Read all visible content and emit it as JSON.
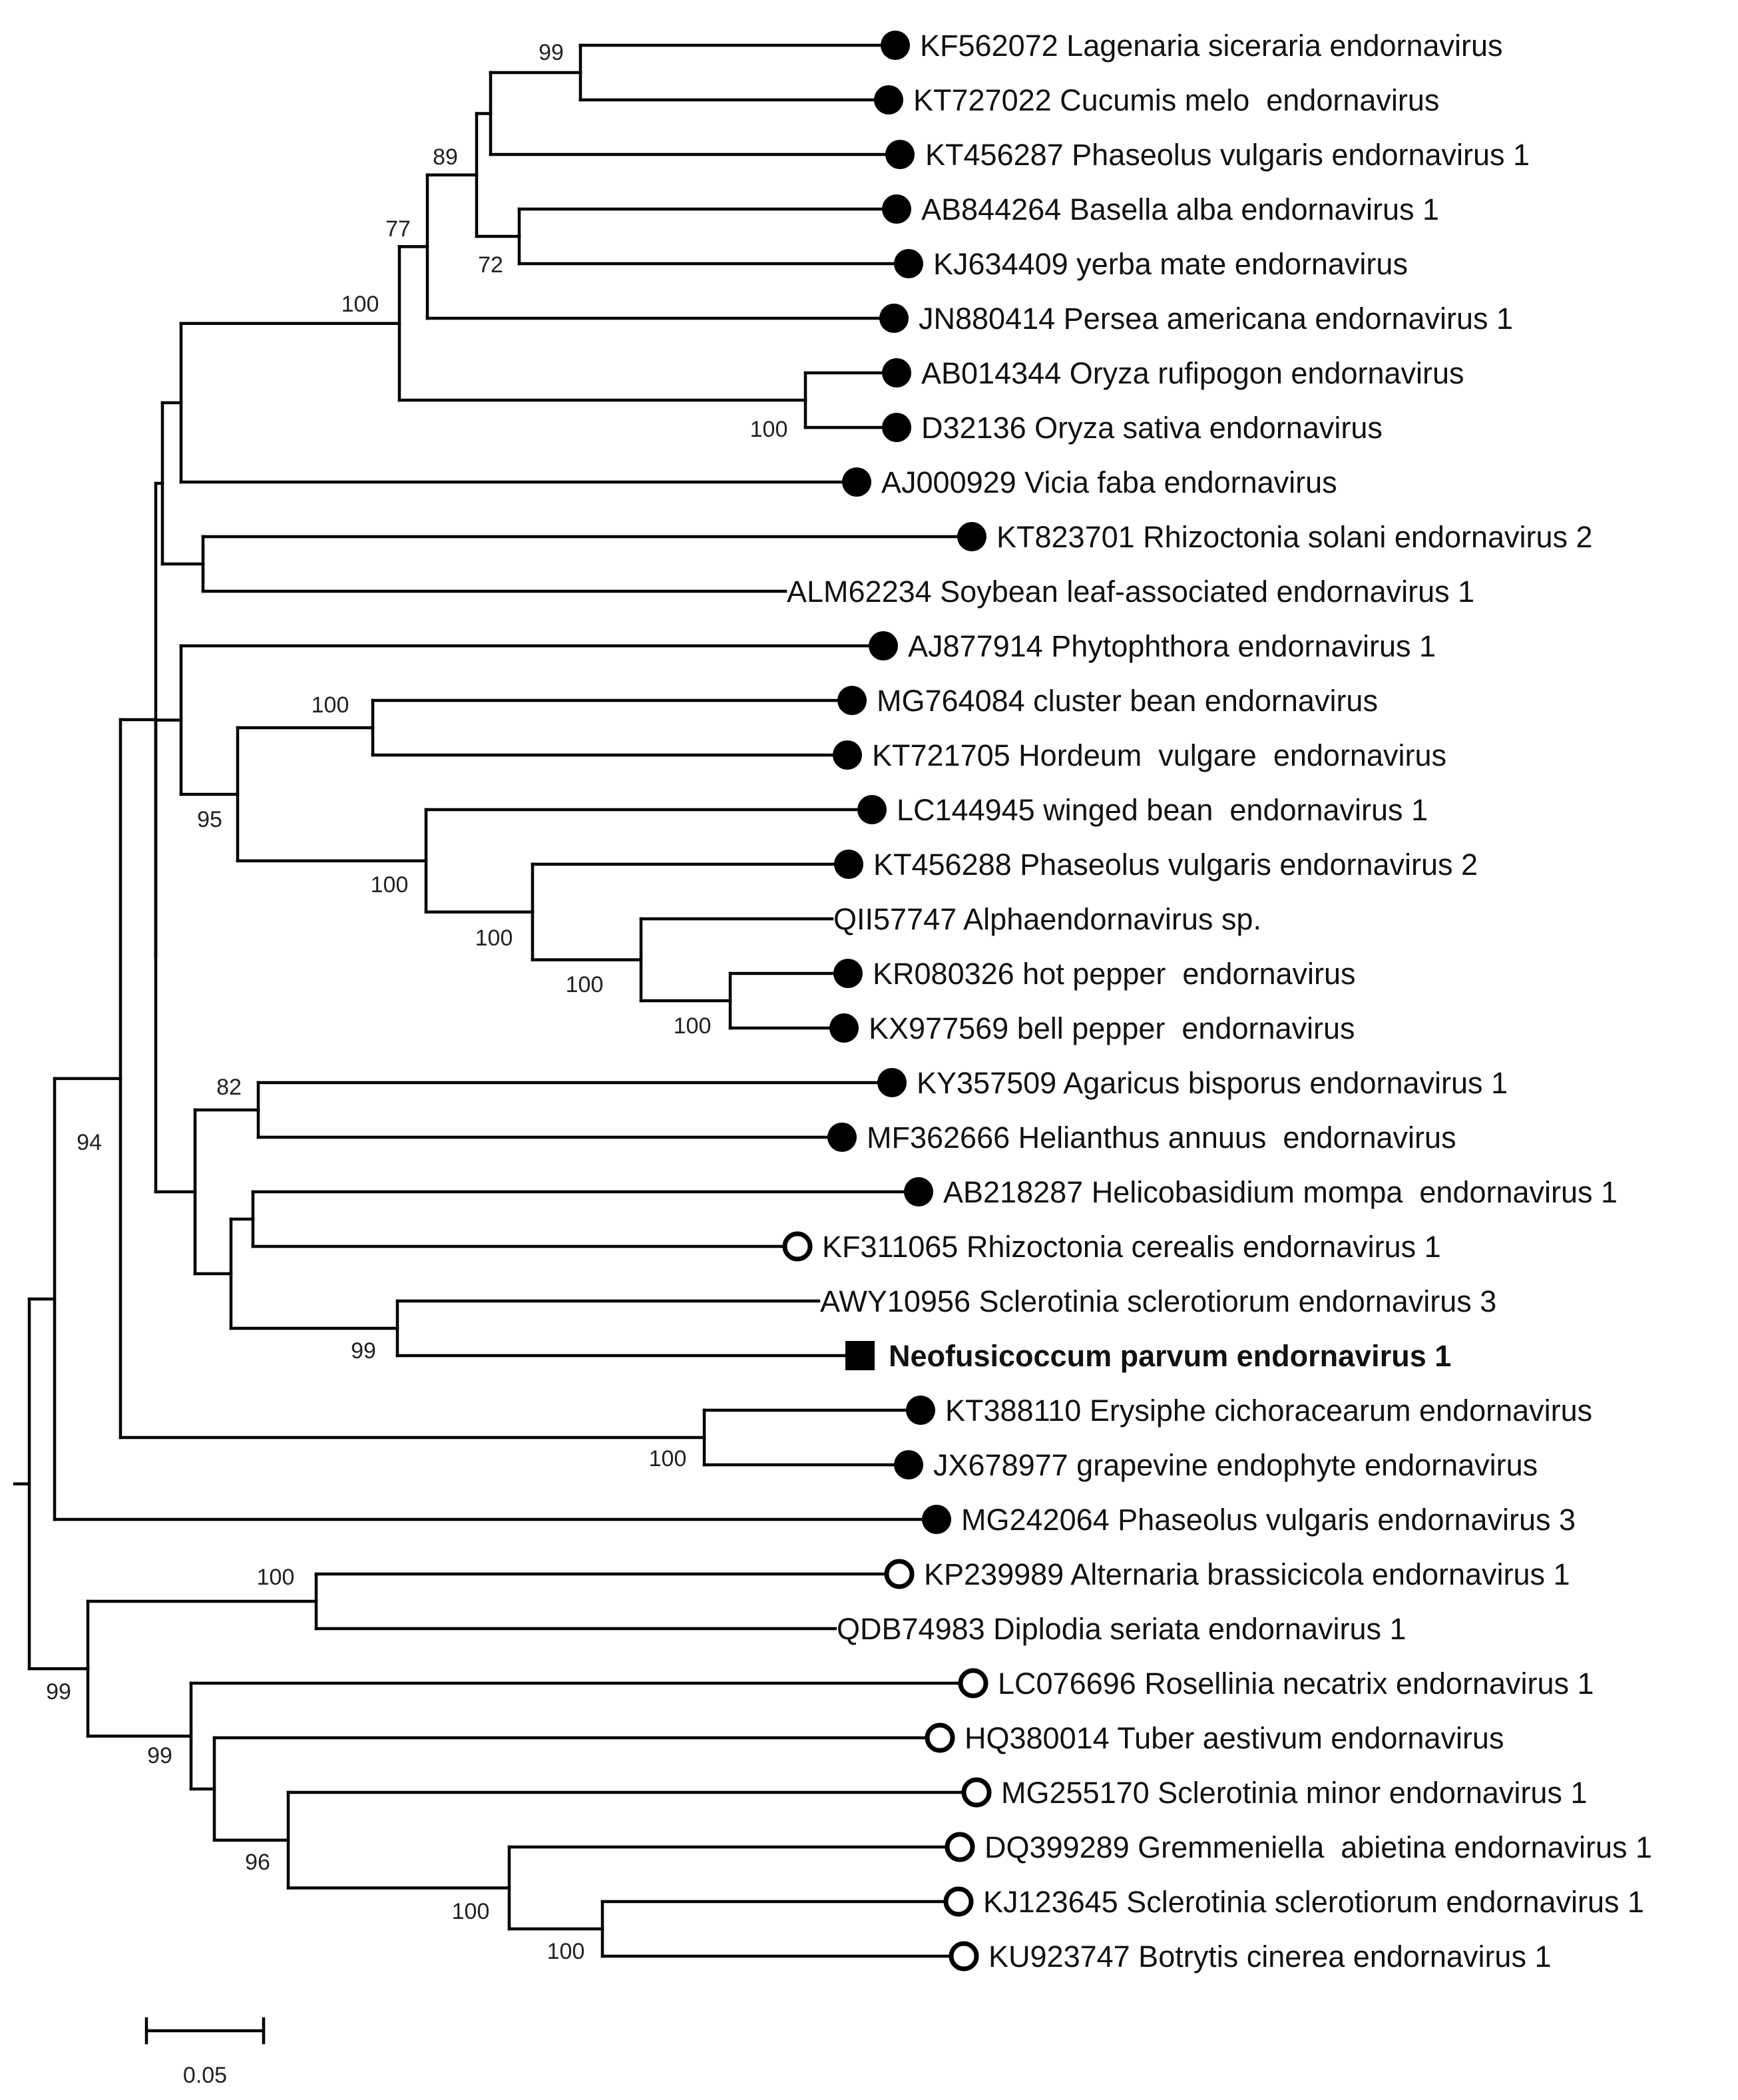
{
  "figure": {
    "type": "phylogenetic-tree",
    "scale_bar_label": "0.05"
  },
  "taxa": [
    {
      "label": "KF562072 Lagenaria siceraria endornavirus",
      "marker": "filled-circle",
      "bold": false
    },
    {
      "label": "KT727022 Cucumis melo  endornavirus",
      "marker": "filled-circle",
      "bold": false
    },
    {
      "label": "KT456287 Phaseolus vulgaris endornavirus 1",
      "marker": "filled-circle",
      "bold": false
    },
    {
      "label": "AB844264 Basella alba endornavirus 1",
      "marker": "filled-circle",
      "bold": false
    },
    {
      "label": "KJ634409 yerba mate endornavirus",
      "marker": "filled-circle",
      "bold": false
    },
    {
      "label": "JN880414 Persea americana endornavirus 1",
      "marker": "filled-circle",
      "bold": false
    },
    {
      "label": "AB014344 Oryza rufipogon endornavirus",
      "marker": "filled-circle",
      "bold": false
    },
    {
      "label": "D32136 Oryza sativa endornavirus",
      "marker": "filled-circle",
      "bold": false
    },
    {
      "label": "AJ000929 Vicia faba endornavirus",
      "marker": "filled-circle",
      "bold": false
    },
    {
      "label": "KT823701 Rhizoctonia solani endornavirus 2",
      "marker": "filled-circle",
      "bold": false
    },
    {
      "label": "ALM62234 Soybean leaf-associated endornavirus 1",
      "marker": "none",
      "bold": false
    },
    {
      "label": "AJ877914 Phytophthora endornavirus 1",
      "marker": "filled-circle",
      "bold": false
    },
    {
      "label": "MG764084 cluster bean endornavirus",
      "marker": "filled-circle",
      "bold": false
    },
    {
      "label": "KT721705 Hordeum  vulgare  endornavirus",
      "marker": "filled-circle",
      "bold": false
    },
    {
      "label": "LC144945 winged bean  endornavirus 1",
      "marker": "filled-circle",
      "bold": false
    },
    {
      "label": "KT456288 Phaseolus vulgaris endornavirus 2",
      "marker": "filled-circle",
      "bold": false
    },
    {
      "label": "QII57747 Alphaendornavirus sp.",
      "marker": "none",
      "bold": false
    },
    {
      "label": "KR080326 hot pepper  endornavirus",
      "marker": "filled-circle",
      "bold": false
    },
    {
      "label": "KX977569 bell pepper  endornavirus",
      "marker": "filled-circle",
      "bold": false
    },
    {
      "label": "KY357509 Agaricus bisporus endornavirus 1",
      "marker": "filled-circle",
      "bold": false
    },
    {
      "label": "MF362666 Helianthus annuus  endornavirus",
      "marker": "filled-circle",
      "bold": false
    },
    {
      "label": "AB218287 Helicobasidium mompa  endornavirus 1",
      "marker": "filled-circle",
      "bold": false
    },
    {
      "label": "KF311065 Rhizoctonia cerealis endornavirus 1",
      "marker": "open-circle",
      "bold": false
    },
    {
      "label": "AWY10956 Sclerotinia sclerotiorum endornavirus 3",
      "marker": "none",
      "bold": false
    },
    {
      "label": "Neofusicoccum parvum endornavirus 1",
      "marker": "filled-square",
      "bold": true
    },
    {
      "label": "KT388110 Erysiphe cichoracearum endornavirus",
      "marker": "filled-circle",
      "bold": false
    },
    {
      "label": "JX678977 grapevine endophyte endornavirus",
      "marker": "filled-circle",
      "bold": false
    },
    {
      "label": "MG242064 Phaseolus vulgaris endornavirus 3",
      "marker": "filled-circle",
      "bold": false
    },
    {
      "label": "KP239989 Alternaria brassicicola endornavirus 1",
      "marker": "open-circle",
      "bold": false
    },
    {
      "label": "QDB74983 Diplodia seriata endornavirus 1",
      "marker": "none",
      "bold": false
    },
    {
      "label": "LC076696 Rosellinia necatrix endornavirus 1",
      "marker": "open-circle",
      "bold": false
    },
    {
      "label": "HQ380014 Tuber aestivum endornavirus",
      "marker": "open-circle",
      "bold": false
    },
    {
      "label": "MG255170 Sclerotinia minor endornavirus 1",
      "marker": "open-circle",
      "bold": false
    },
    {
      "label": "DQ399289 Gremmeniella  abietina endornavirus 1",
      "marker": "open-circle",
      "bold": false
    },
    {
      "label": "KJ123645 Sclerotinia sclerotiorum endornavirus 1",
      "marker": "open-circle",
      "bold": false
    },
    {
      "label": "KU923747 Botrytis cinerea endornavirus 1",
      "marker": "open-circle",
      "bold": false
    }
  ],
  "bootstrap_values": [
    "99",
    "89",
    "77",
    "72",
    "100",
    "100",
    "100",
    "95",
    "100",
    "100",
    "100",
    "100",
    "82",
    "99",
    "94",
    "100",
    "100",
    "99",
    "99",
    "96",
    "100",
    "100"
  ]
}
